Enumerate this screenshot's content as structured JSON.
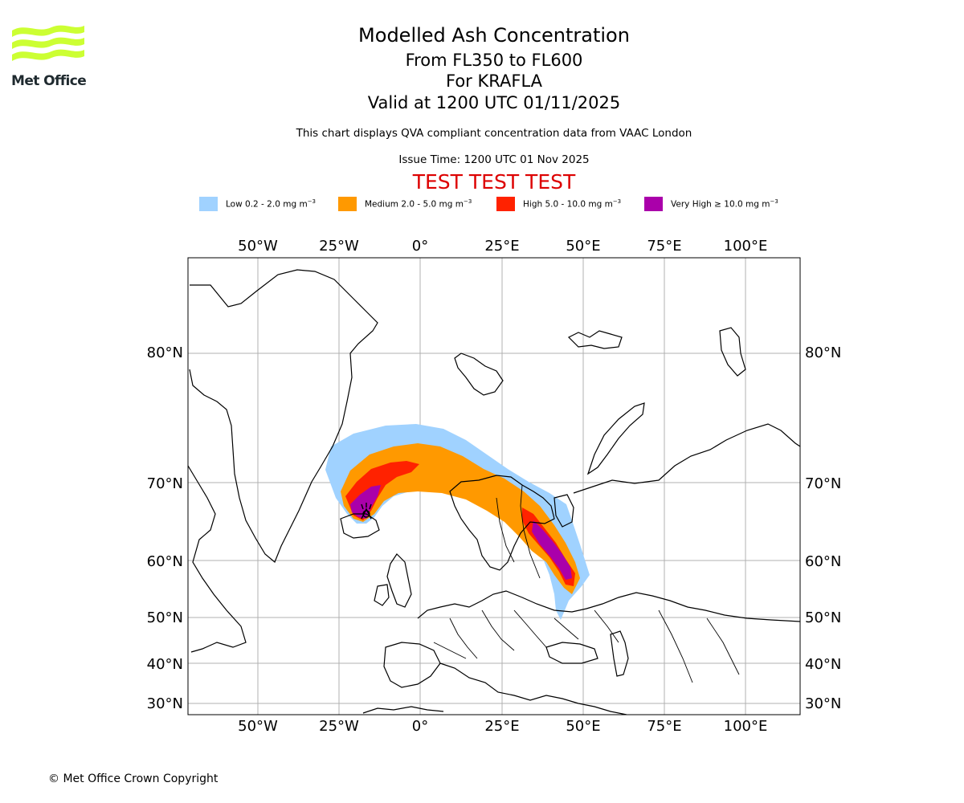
{
  "logo": {
    "text": "Met Office",
    "color": "#ccff33"
  },
  "header": {
    "title": "Modelled Ash Concentration",
    "levels": "From FL350 to FL600",
    "volcano": "For KRAFLA",
    "valid": "Valid at 1200 UTC 01/11/2025",
    "description": "This chart displays QVA compliant concentration data from VAAC London",
    "issue_time": "Issue Time: 1200 UTC 01 Nov 2025",
    "test_banner": "TEST TEST TEST",
    "test_color": "#dd0000"
  },
  "legend": [
    {
      "label": "Low 0.2 - 2.0 mg m",
      "exp": "−3",
      "color": "#a0d2ff"
    },
    {
      "label": "Medium 2.0 - 5.0 mg m",
      "exp": "−3",
      "color": "#ff9900"
    },
    {
      "label": "High 5.0 - 10.0 mg m",
      "exp": "−3",
      "color": "#ff2200"
    },
    {
      "label": "Very High  ≥  10.0 mg m",
      "exp": "−3",
      "color": "#aa00aa"
    }
  ],
  "map": {
    "longitude_ticks": [
      "50°W",
      "25°W",
      "0°",
      "25°E",
      "50°E",
      "75°E",
      "100°E"
    ],
    "latitude_ticks": [
      "80°N",
      "70°N",
      "60°N",
      "50°N",
      "40°N",
      "30°N"
    ],
    "volcano_symbol": "volcano-icon"
  },
  "footer": {
    "copyright": "© Met Office Crown Copyright"
  }
}
